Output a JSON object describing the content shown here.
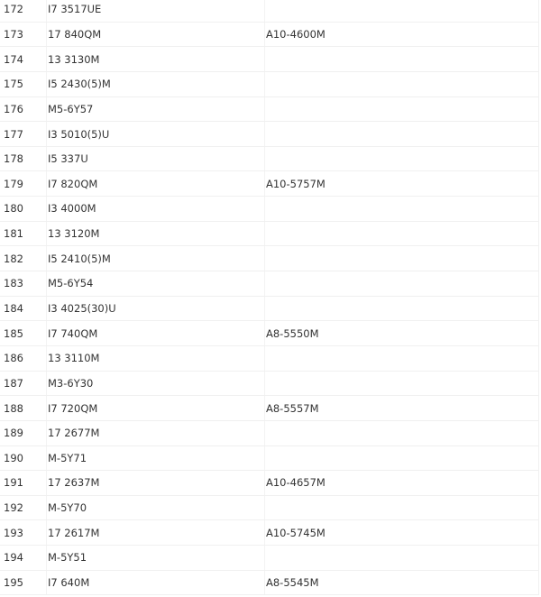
{
  "table": {
    "rows": [
      {
        "num": "172",
        "intel": "I7 3517UE",
        "amd": ""
      },
      {
        "num": "173",
        "intel": "17 840QM",
        "amd": "A10-4600M"
      },
      {
        "num": "174",
        "intel": "13 3130M",
        "amd": ""
      },
      {
        "num": "175",
        "intel": "I5 2430(5)M",
        "amd": ""
      },
      {
        "num": "176",
        "intel": "M5-6Y57",
        "amd": ""
      },
      {
        "num": "177",
        "intel": "I3 5010(5)U",
        "amd": ""
      },
      {
        "num": "178",
        "intel": "I5 337U",
        "amd": ""
      },
      {
        "num": "179",
        "intel": "I7 820QM",
        "amd": "A10-5757M"
      },
      {
        "num": "180",
        "intel": "I3 4000M",
        "amd": ""
      },
      {
        "num": "181",
        "intel": "13 3120M",
        "amd": ""
      },
      {
        "num": "182",
        "intel": "I5 2410(5)M",
        "amd": ""
      },
      {
        "num": "183",
        "intel": "M5-6Y54",
        "amd": ""
      },
      {
        "num": "184",
        "intel": "I3 4025(30)U",
        "amd": ""
      },
      {
        "num": "185",
        "intel": "I7 740QM",
        "amd": "A8-5550M"
      },
      {
        "num": "186",
        "intel": "13 3110M",
        "amd": ""
      },
      {
        "num": "187",
        "intel": "M3-6Y30",
        "amd": ""
      },
      {
        "num": "188",
        "intel": "I7 720QM",
        "amd": "A8-5557M"
      },
      {
        "num": "189",
        "intel": "17 2677M",
        "amd": ""
      },
      {
        "num": "190",
        "intel": "M-5Y71",
        "amd": ""
      },
      {
        "num": "191",
        "intel": "17 2637M",
        "amd": "A10-4657M"
      },
      {
        "num": "192",
        "intel": "M-5Y70",
        "amd": ""
      },
      {
        "num": "193",
        "intel": "17 2617M",
        "amd": "A10-5745M"
      },
      {
        "num": "194",
        "intel": "M-5Y51",
        "amd": ""
      },
      {
        "num": "195",
        "intel": "I7 640M",
        "amd": "A8-5545M"
      }
    ]
  }
}
